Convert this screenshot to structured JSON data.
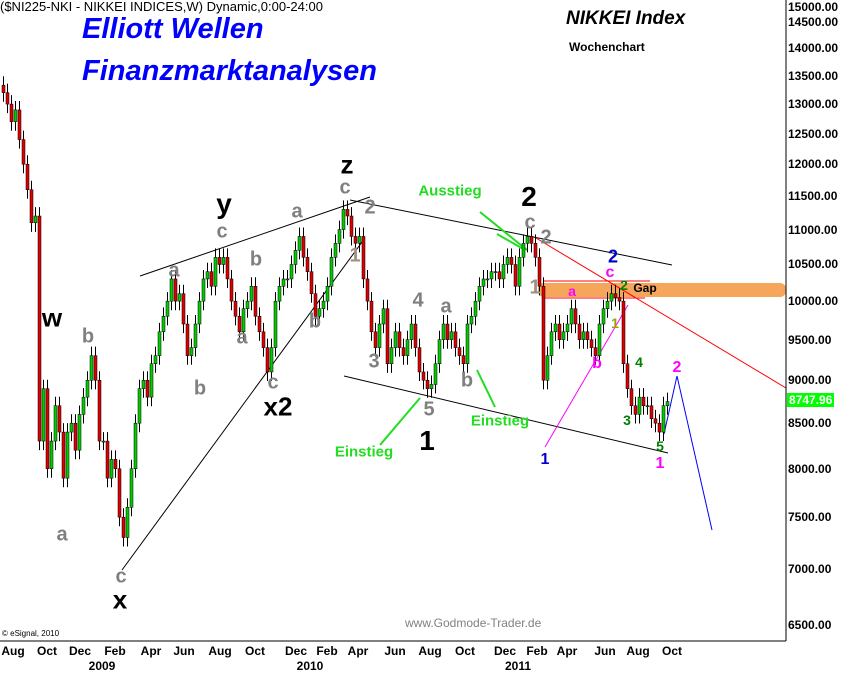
{
  "header": {
    "symbol_line": "($NI225-NKI - NIKKEI INDICES,W) Dynamic,0:00-24:00"
  },
  "branding": {
    "line1": "Elliott Wellen",
    "line2": "Finanzmarktanalysen",
    "color": "#0000ff"
  },
  "chart_title": "NIKKEI Index",
  "chart_subtitle": "Wochenchart",
  "watermark": "www.Godmode-Trader.de",
  "copyright": "© eSignal, 2010",
  "last_price": "8747.96",
  "colors": {
    "up": "#00cc00",
    "down": "#dd0000",
    "gap": "#f5a65b",
    "price_tag": "#00ff00"
  },
  "chart_data": {
    "type": "candlestick",
    "interval": "weekly",
    "scale": "log",
    "ylim": [
      6500,
      15000
    ],
    "y_ticks": [
      "15000.00",
      "14500.00",
      "14000.00",
      "13500.00",
      "13000.00",
      "12500.00",
      "12000.00",
      "11500.00",
      "11000.00",
      "10500.00",
      "10000.00",
      "9500.00",
      "9000.00",
      "8500.00",
      "8000.00",
      "7500.00",
      "7000.00",
      "6500.00"
    ],
    "x_ticks": [
      "Aug",
      "Oct",
      "Dec",
      "Feb",
      "Apr",
      "Jun",
      "Aug",
      "Oct",
      "Dec",
      "Feb",
      "Apr",
      "Jun",
      "Aug",
      "Oct",
      "Dec",
      "Feb",
      "Apr",
      "Jun",
      "Aug",
      "Oct"
    ],
    "x_years": [
      "2009",
      "2010",
      "2011"
    ],
    "closes": [
      13200,
      13000,
      12700,
      12900,
      12400,
      12000,
      11600,
      11100,
      11200,
      8300,
      8900,
      8000,
      8300,
      8700,
      8400,
      7900,
      8400,
      8500,
      8200,
      8600,
      8800,
      9000,
      9300,
      9000,
      8300,
      8300,
      7900,
      8100,
      8000,
      7500,
      7300,
      7600,
      8000,
      8500,
      8900,
      9000,
      8800,
      9200,
      9300,
      9600,
      9800,
      10000,
      10300,
      10000,
      10100,
      9700,
      9300,
      9400,
      9700,
      10000,
      10300,
      10400,
      10200,
      10600,
      10500,
      10600,
      10300,
      10000,
      9800,
      9600,
      9900,
      10000,
      10200,
      9800,
      9600,
      9400,
      9100,
      9400,
      10000,
      10200,
      10300,
      10300,
      10500,
      10700,
      10900,
      10600,
      10400,
      10100,
      9800,
      9900,
      10000,
      10200,
      10600,
      10800,
      11000,
      11300,
      11200,
      10900,
      10800,
      10900,
      10300,
      10000,
      9600,
      9400,
      9700,
      9900,
      9200,
      9400,
      9600,
      9400,
      9300,
      9500,
      9700,
      9400,
      9100,
      9000,
      8900,
      8950,
      9200,
      9500,
      9700,
      9500,
      9600,
      9400,
      9300,
      9200,
      9700,
      9800,
      10000,
      10200,
      10300,
      10300,
      10400,
      10400,
      10300,
      10500,
      10600,
      10500,
      10200,
      10600,
      10800,
      10900,
      10800,
      10600,
      10200,
      9000,
      9300,
      9600,
      9700,
      9500,
      9600,
      9700,
      9900,
      9700,
      9500,
      9600,
      9500,
      9400,
      9300,
      9700,
      9900,
      10000,
      10100,
      10050,
      10000,
      9200,
      8900,
      8700,
      8600,
      8800,
      8700,
      8700,
      8550,
      8500,
      8400,
      8700,
      8748
    ]
  },
  "annotations": [
    {
      "text": "w",
      "color": "#000000"
    },
    {
      "text": "b",
      "color": "#808080"
    },
    {
      "text": "a",
      "color": "#808080"
    },
    {
      "text": "c",
      "color": "#808080"
    },
    {
      "text": "x",
      "color": "#000000"
    },
    {
      "text": "a",
      "color": "#808080"
    },
    {
      "text": "b",
      "color": "#808080"
    },
    {
      "text": "y",
      "color": "#000000"
    },
    {
      "text": "c",
      "color": "#808080"
    },
    {
      "text": "a",
      "color": "#808080"
    },
    {
      "text": "b",
      "color": "#808080"
    },
    {
      "text": "a",
      "color": "#808080"
    },
    {
      "text": "c",
      "color": "#808080"
    },
    {
      "text": "x2",
      "color": "#000000"
    },
    {
      "text": "b",
      "color": "#808080"
    },
    {
      "text": "z",
      "color": "#000000"
    },
    {
      "text": "c",
      "color": "#808080"
    },
    {
      "text": "2",
      "color": "#808080"
    },
    {
      "text": "1",
      "color": "#a09080"
    },
    {
      "text": "3",
      "color": "#808080"
    },
    {
      "text": "4",
      "color": "#808080"
    },
    {
      "text": "a",
      "color": "#808080"
    },
    {
      "text": "5",
      "color": "#808080"
    },
    {
      "text": "1",
      "color": "#000000"
    },
    {
      "text": "b",
      "color": "#808080"
    },
    {
      "text": "Ausstieg",
      "color": "#22dd22"
    },
    {
      "text": "2",
      "color": "#000000"
    },
    {
      "text": "c",
      "color": "#808080"
    },
    {
      "text": "2",
      "color": "#808080"
    },
    {
      "text": "1",
      "color": "#a09080"
    },
    {
      "text": "Einstieg",
      "color": "#22dd22"
    },
    {
      "text": "Einstieg",
      "color": "#22dd22"
    },
    {
      "text": "1",
      "color": "#0000cc"
    },
    {
      "text": "2",
      "color": "#0000cc"
    },
    {
      "text": "c",
      "color": "#ff00ff"
    },
    {
      "text": "a",
      "color": "#ff00ff"
    },
    {
      "text": "2",
      "color": "#008000"
    },
    {
      "text": "Gap",
      "color": "#000000"
    },
    {
      "text": "1",
      "color": "#9aa000"
    },
    {
      "text": "b",
      "color": "#ff00ff"
    },
    {
      "text": "4",
      "color": "#008000"
    },
    {
      "text": "3",
      "color": "#008000"
    },
    {
      "text": "5",
      "color": "#008000"
    },
    {
      "text": "1",
      "color": "#ff00ff"
    },
    {
      "text": "2",
      "color": "#ff00ff"
    }
  ]
}
